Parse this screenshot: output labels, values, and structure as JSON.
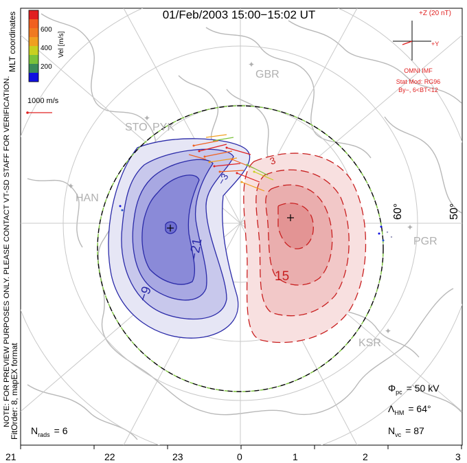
{
  "title": "01/Feb/2003 15:00−15:02 UT",
  "side_note_1": "NOTE: FOR PREVIEW PURPOSES ONLY. PLEASE CONTACT VT-SD STAFF FOR VERIFICATION.",
  "side_note_2": "FitOrder: 8, mapEX format",
  "mlt_label": "MLT coordinates",
  "colorbar": {
    "label": "Vel [m/s]",
    "ticks": [
      "600",
      "400",
      "200"
    ],
    "colors": [
      "#1010e0",
      "#2050c8",
      "#3a8a5a",
      "#7ac23a",
      "#c8d020",
      "#f0a020",
      "#f06020",
      "#e02020"
    ]
  },
  "scale_vector": {
    "label": "1000 m/s",
    "color": "#e02020"
  },
  "imf": {
    "z_label": "+Z (20 nT)",
    "y_label": "+Y",
    "line1": "OMNI IMF",
    "line2": "Stat Mod: RG96",
    "line3": "By−, 6<BT<12",
    "color": "#e02020"
  },
  "stations": [
    {
      "name": "GBR"
    },
    {
      "name": "STO"
    },
    {
      "name": "PYK"
    },
    {
      "name": "HAN"
    },
    {
      "name": "PGR"
    },
    {
      "name": "KSR"
    }
  ],
  "lat_labels": [
    "60°",
    "50°"
  ],
  "contour_labels": [
    "−21",
    "−9",
    "15",
    "−3",
    "3"
  ],
  "stats": {
    "phi_pc": {
      "sym": "Φ",
      "sub": "pc",
      "value": "= 50 kV"
    },
    "lambda_hm": {
      "sym": "Λ",
      "sub": "HM",
      "value": "= 64°"
    },
    "n_vc": {
      "sym": "N",
      "sub": "vc",
      "value": "= 87"
    },
    "n_rads": {
      "sym": "N",
      "sub": "rads",
      "value": "= 6"
    }
  },
  "mlt_axis": [
    "21",
    "22",
    "23",
    "0",
    "1",
    "2",
    "3"
  ],
  "colors": {
    "negative_cell": "#2a2aa8",
    "positive_cell": "#c81e1e",
    "coastline": "#b8b8b8",
    "grid": "#c8c8c8",
    "hmb_green": "#7ac23a"
  }
}
